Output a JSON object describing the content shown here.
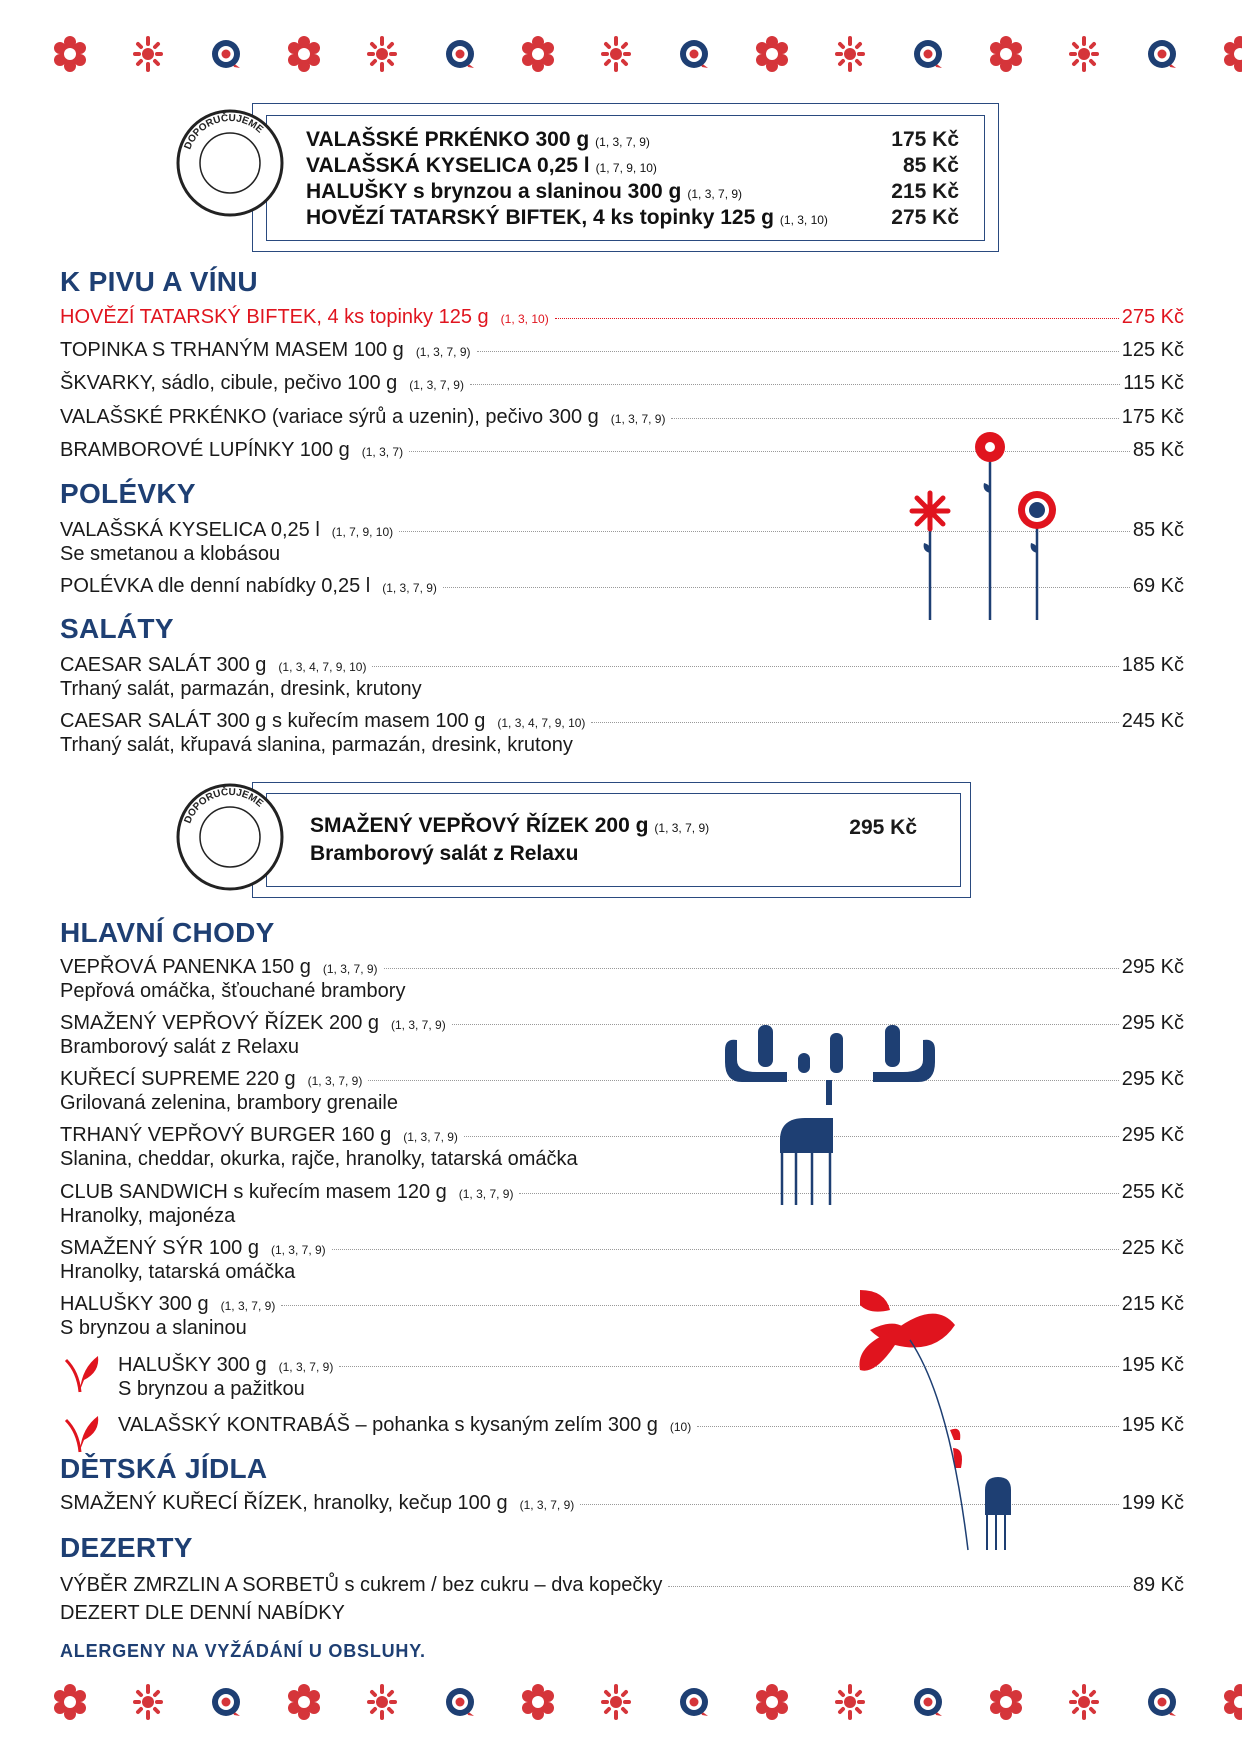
{
  "colors": {
    "red": "#e0141e",
    "navy": "#1e3f73",
    "text": "#1a1a1a"
  },
  "decor_icons": [
    "flower-icon",
    "star-flower-icon",
    "target-icon"
  ],
  "stamp_text": "DOPORUČUJEME",
  "recommended_1": {
    "items": [
      {
        "name": "VALAŠSKÉ PRKÉNKO 300 g",
        "allergens": "(1, 3, 7, 9)",
        "price": "175 Kč"
      },
      {
        "name": "VALAŠSKÁ KYSELICA 0,25 l",
        "allergens": "(1, 7, 9, 10)",
        "price": "85 Kč"
      },
      {
        "name": "HALUŠKY s brynzou a slaninou 300 g",
        "allergens": "(1, 3, 7, 9)",
        "price": "215 Kč"
      },
      {
        "name": "HOVĚZÍ TATARSKÝ BIFTEK, 4 ks topinky 125 g",
        "allergens": "(1, 3, 10)",
        "price": "275 Kč"
      }
    ]
  },
  "recommended_2": {
    "name": "SMAŽENÝ VEPŘOVÝ ŘÍZEK 200 g",
    "allergens": "(1, 3, 7, 9)",
    "description": "Bramborový salát z Relaxu",
    "price": "295 Kč"
  },
  "sections": [
    {
      "title": "K PIVU A VÍNU",
      "items": [
        {
          "name": "HOVĚZÍ TATARSKÝ BIFTEK, 4 ks topinky 125 g",
          "allergens": "(1, 3, 10)",
          "price": "275 Kč",
          "highlight": true
        },
        {
          "name": "TOPINKA S TRHANÝM MASEM 100 g",
          "allergens": "(1, 3, 7, 9)",
          "price": "125 Kč"
        },
        {
          "name": "ŠKVARKY, sádlo, cibule, pečivo 100 g",
          "allergens": "(1, 3, 7, 9)",
          "price": "115 Kč"
        },
        {
          "name": "VALAŠSKÉ PRKÉNKO (variace sýrů a uzenin), pečivo 300 g",
          "allergens": "(1, 3, 7, 9)",
          "price": "175 Kč"
        },
        {
          "name": "BRAMBOROVÉ LUPÍNKY 100 g",
          "allergens": "(1, 3, 7)",
          "price": "85 Kč"
        }
      ]
    },
    {
      "title": "POLÉVKY",
      "items": [
        {
          "name": "VALAŠSKÁ KYSELICA 0,25 l",
          "allergens": "(1, 7, 9, 10)",
          "price": "85 Kč",
          "description": "Se smetanou a klobásou"
        },
        {
          "name": "POLÉVKA dle denní nabídky 0,25 l",
          "allergens": "(1, 3, 7, 9)",
          "price": "69 Kč"
        }
      ]
    },
    {
      "title": "SALÁTY",
      "items": [
        {
          "name": "CAESAR SALÁT 300 g",
          "allergens": "(1, 3, 4, 7, 9, 10)",
          "price": "185 Kč",
          "description": "Trhaný salát, parmazán, dresink, krutony"
        },
        {
          "name": "CAESAR SALÁT 300 g s kuřecím masem 100 g",
          "allergens": "(1, 3, 4, 7, 9, 10)",
          "price": "245 Kč",
          "description": "Trhaný salát, křupavá slanina, parmazán, dresink, krutony"
        }
      ]
    },
    {
      "title": "HLAVNÍ CHODY",
      "items": [
        {
          "name": "VEPŘOVÁ PANENKA 150 g",
          "allergens": "(1, 3, 7, 9)",
          "price": "295 Kč",
          "description": "Pepřová omáčka, šťouchané brambory"
        },
        {
          "name": "SMAŽENÝ VEPŘOVÝ ŘÍZEK 200 g",
          "allergens": "(1, 3, 7, 9)",
          "price": "295 Kč",
          "description": "Bramborový salát z Relaxu"
        },
        {
          "name": "KUŘECÍ SUPREME 220 g",
          "allergens": "(1, 3, 7, 9)",
          "price": "295 Kč",
          "description": "Grilovaná zelenina, brambory grenaile"
        },
        {
          "name": "TRHANÝ VEPŘOVÝ BURGER 160 g",
          "allergens": "(1, 3, 7, 9)",
          "price": "295 Kč",
          "description": "Slanina, cheddar, okurka, rajče, hranolky, tatarská omáčka"
        },
        {
          "name": "CLUB SANDWICH s kuřecím masem 120 g",
          "allergens": "(1, 3, 7, 9)",
          "price": "255 Kč",
          "description": "Hranolky, majonéza"
        },
        {
          "name": "SMAŽENÝ SÝR 100 g",
          "allergens": "(1, 3, 7, 9)",
          "price": "225 Kč",
          "description": "Hranolky, tatarská omáčka"
        },
        {
          "name": "HALUŠKY 300 g",
          "allergens": "(1, 3, 7, 9)",
          "price": "215 Kč",
          "description": "S brynzou a slaninou"
        },
        {
          "name": "HALUŠKY 300 g",
          "allergens": "(1, 3, 7, 9)",
          "price": "195 Kč",
          "description": "S brynzou a pažitkou",
          "vegetarian": true
        },
        {
          "name": "VALAŠSKÝ KONTRABÁŠ – pohanka s kysaným zelím 300 g",
          "allergens": "(10)",
          "price": "195 Kč",
          "vegetarian": true
        }
      ]
    },
    {
      "title": "DĚTSKÁ JÍDLA",
      "items": [
        {
          "name": "SMAŽENÝ KUŘECÍ ŘÍZEK, hranolky, kečup 100 g",
          "allergens": "(1, 3, 7, 9)",
          "price": "199 Kč"
        }
      ]
    },
    {
      "title": "DEZERTY",
      "items": [
        {
          "name": "VÝBĚR ZMRZLIN A SORBETŮ s cukrem / bez cukru – dva kopečky",
          "price": "89 Kč"
        },
        {
          "name": "DEZERT DLE DENNÍ NABÍDKY"
        }
      ]
    }
  ],
  "footer_note": "ALERGENY NA VYŽÁDÁNÍ U OBSLUHY."
}
